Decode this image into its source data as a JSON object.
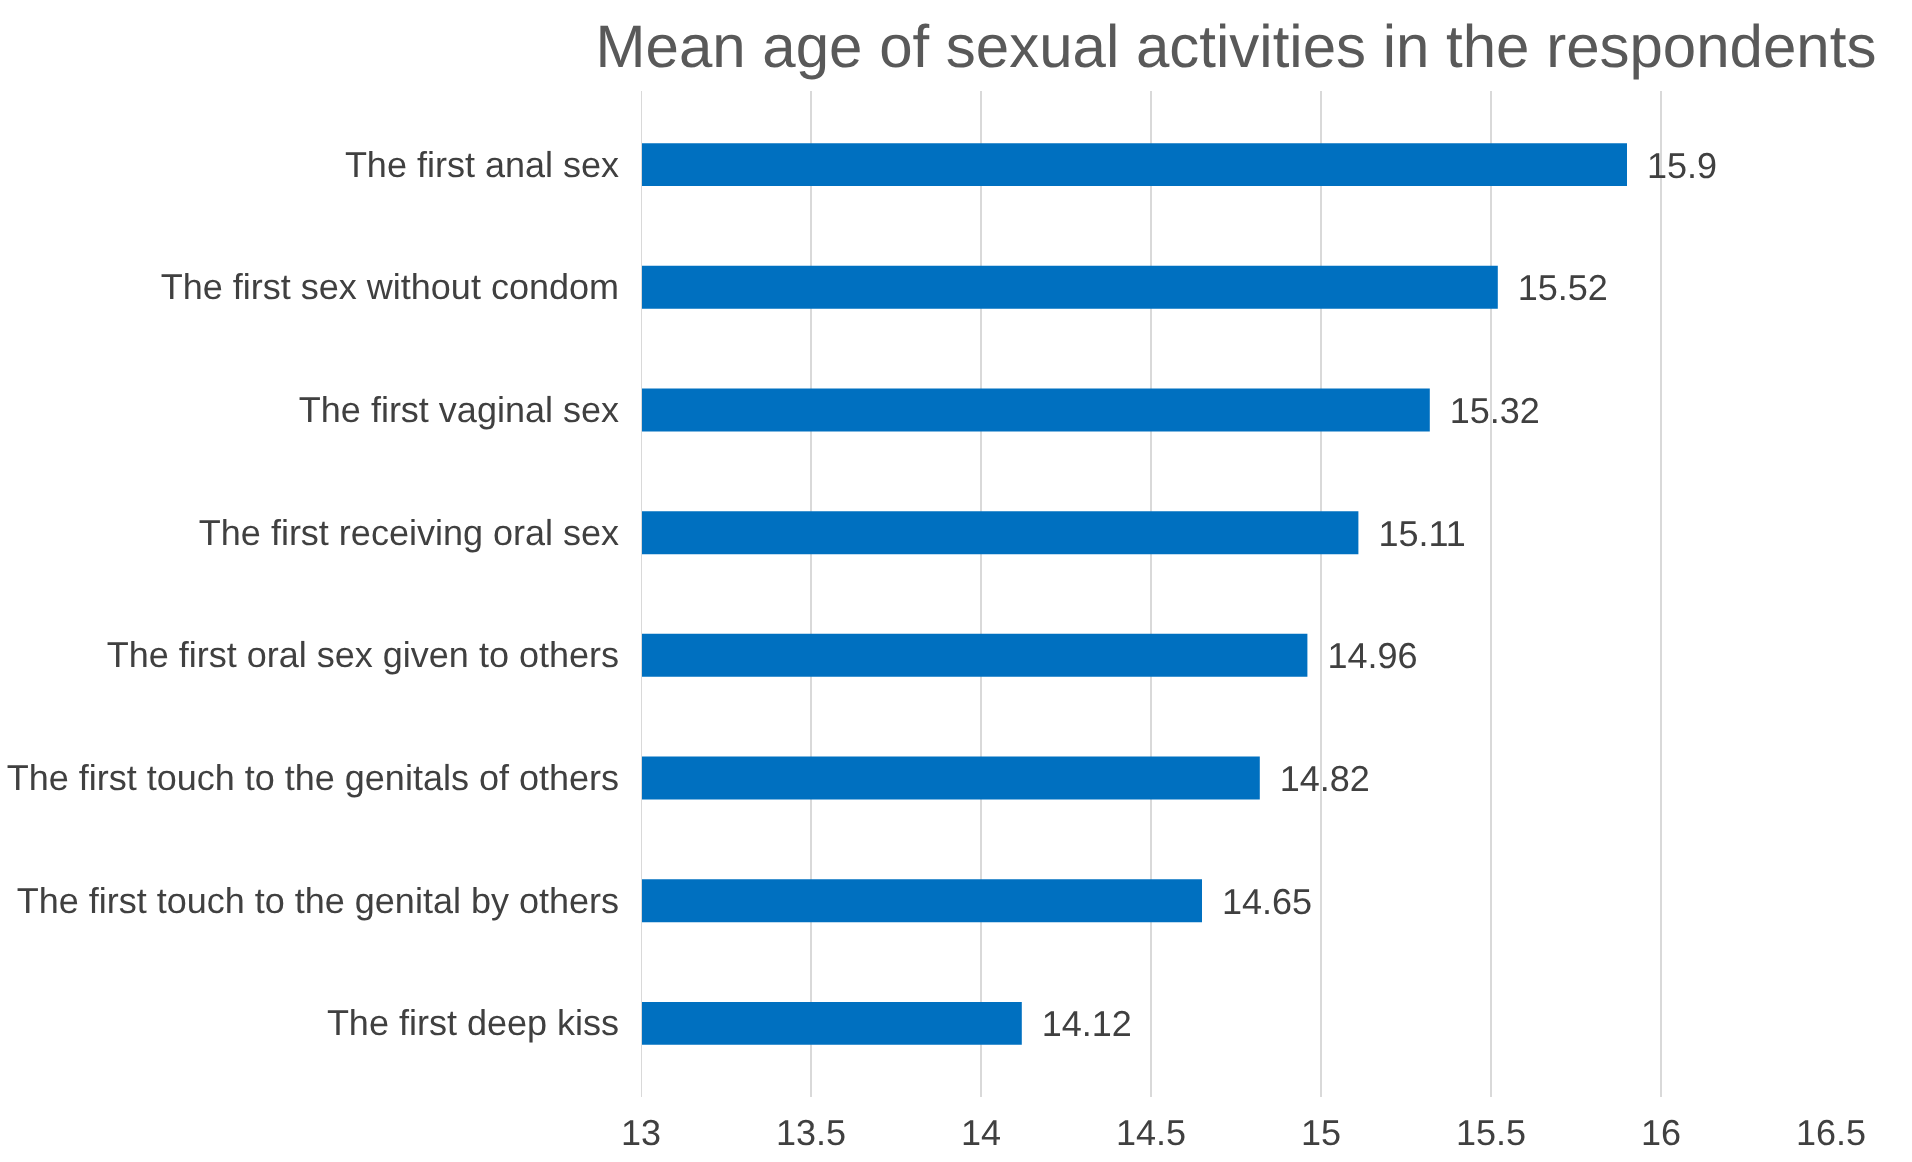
{
  "chart_data": {
    "type": "bar",
    "orientation": "horizontal",
    "title": "Mean age of sexual activities in the respondents",
    "categories": [
      "The first anal sex",
      "The first sex without condom",
      "The first vaginal sex",
      "The first receiving oral sex",
      "The first oral sex given to others",
      "The first touch to the genitals of others",
      "The first touch to the genital by others",
      "The first deep kiss"
    ],
    "values": [
      15.9,
      15.52,
      15.32,
      15.11,
      14.96,
      14.82,
      14.65,
      14.12
    ],
    "color": "#0070c0",
    "xlim": [
      13,
      16.5
    ],
    "xticks": [
      13,
      13.5,
      14,
      14.5,
      15,
      15.5,
      16,
      16.5
    ],
    "grid": "x",
    "data_labels": true
  }
}
